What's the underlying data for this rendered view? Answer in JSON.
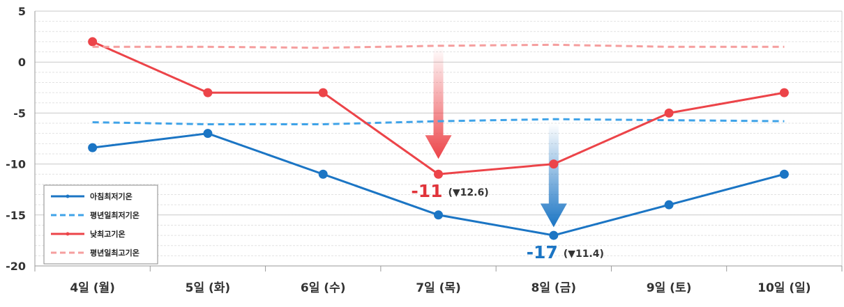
{
  "chart_data": {
    "type": "line",
    "categories": [
      "4일 (월)",
      "5일 (화)",
      "6일 (수)",
      "7일 (목)",
      "8일 (금)",
      "9일 (토)",
      "10일 (일)"
    ],
    "ylim": [
      -20,
      5
    ],
    "yticks": [
      5,
      0,
      -5,
      -10,
      -15,
      -20
    ],
    "y_tick_labels": [
      "5",
      "0",
      "-5",
      "-10",
      "-15",
      "-20"
    ],
    "grid": true,
    "legend_position": "bottom-left",
    "series": [
      {
        "name": "아침최저기온",
        "values": [
          -8.4,
          -7,
          -11,
          -15,
          -17,
          -14,
          -11
        ],
        "color": "#1b75c4",
        "style": "solid",
        "markers": true
      },
      {
        "name": "평년일최저기온",
        "values": [
          -5.9,
          -6.1,
          -6.1,
          -5.8,
          -5.6,
          -5.7,
          -5.8
        ],
        "color": "#3fa3e8",
        "style": "dashed",
        "markers": false
      },
      {
        "name": "낮최고기온",
        "values": [
          2,
          -3,
          -3,
          -11,
          -10,
          -5,
          -3
        ],
        "color": "#ec4449",
        "style": "solid",
        "markers": true
      },
      {
        "name": "평년일최고기온",
        "values": [
          1.5,
          1.5,
          1.4,
          1.6,
          1.7,
          1.5,
          1.5
        ],
        "color": "#f59e9e",
        "style": "dashed",
        "markers": false
      }
    ],
    "annotations": [
      {
        "category_index": 3,
        "series": "낮최고기온",
        "value_text": "-11",
        "delta_text": "(▼12.6)",
        "color": "#e1343b",
        "arrow": "down",
        "arrow_from": 1.5,
        "arrow_to": -9.5
      },
      {
        "category_index": 4,
        "series": "아침최저기온",
        "value_text": "-17",
        "delta_text": "(▼11.4)",
        "color": "#1b75c4",
        "arrow": "down",
        "arrow_from": -6,
        "arrow_to": -16.2
      }
    ]
  }
}
